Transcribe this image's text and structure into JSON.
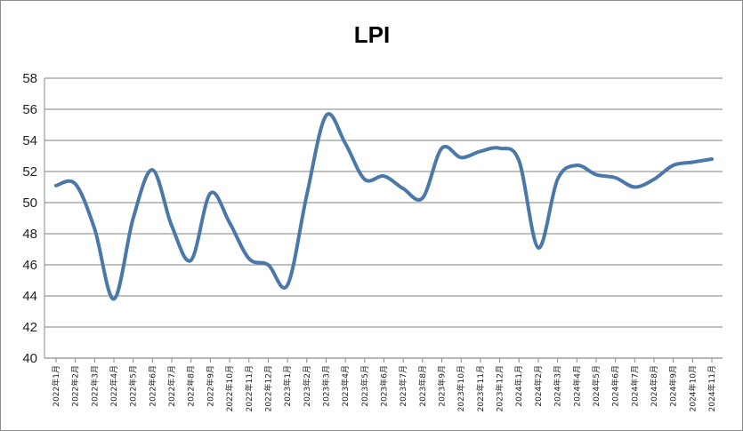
{
  "chart_data": {
    "type": "line",
    "title": "LPI",
    "xlabel": "",
    "ylabel": "",
    "ylim": [
      40,
      58
    ],
    "yticks": [
      40,
      42,
      44,
      46,
      48,
      50,
      52,
      54,
      56,
      58
    ],
    "grid": true,
    "legend": "none",
    "line_color": "#4a78a8",
    "categories": [
      "2022年1月",
      "2022年2月",
      "2022年3月",
      "2022年4月",
      "2022年5月",
      "2022年6月",
      "2022年7月",
      "2022年8月",
      "2022年9月",
      "2022年10月",
      "2022年11月",
      "2022年12月",
      "2023年1月",
      "2023年2月",
      "2023年3月",
      "2023年4月",
      "2023年5月",
      "2023年6月",
      "2023年7月",
      "2023年8月",
      "2023年9月",
      "2023年10月",
      "2023年11月",
      "2023年12月",
      "2024年1月",
      "2024年2月",
      "2024年3月",
      "2024年4月",
      "2024年5月",
      "2024年6月",
      "2024年7月",
      "2024年8月",
      "2024年9月",
      "2024年10月",
      "2024年11月"
    ],
    "values": [
      51.1,
      51.2,
      48.3,
      43.8,
      49.0,
      52.1,
      48.5,
      46.3,
      50.6,
      48.7,
      46.4,
      46.0,
      44.7,
      50.5,
      55.6,
      53.8,
      51.5,
      51.7,
      50.9,
      50.3,
      53.5,
      52.9,
      53.3,
      53.5,
      52.7,
      47.1,
      51.5,
      52.4,
      51.8,
      51.6,
      51.0,
      51.5,
      52.4,
      52.6,
      52.8
    ]
  }
}
